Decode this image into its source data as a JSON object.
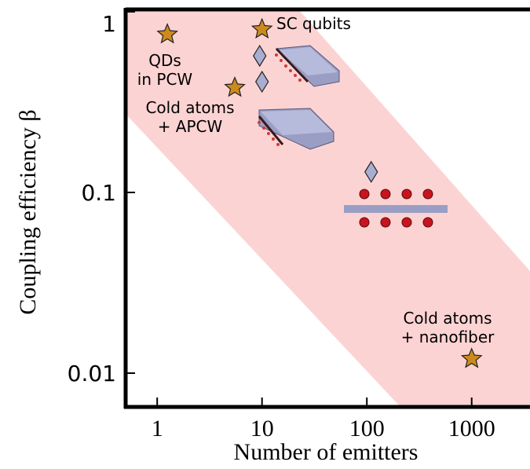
{
  "chart_data": {
    "type": "scatter",
    "xlabel": "Number of emitters",
    "ylabel": "Coupling efficiency β",
    "xscale": "log",
    "yscale": "log",
    "xlim": [
      0.5,
      3600
    ],
    "ylim": [
      0.0065,
      1.03
    ],
    "xticks": [
      1,
      10,
      100,
      1000
    ],
    "yticks": [
      0.01,
      0.1,
      1
    ],
    "series": [
      {
        "marker": "star",
        "color": "#cc8a1e",
        "x": [
          1.25,
          10,
          5.5,
          1000
        ],
        "values": [
          0.75,
          0.8,
          0.38,
          0.012
        ]
      },
      {
        "marker": "diamond",
        "color": "#a9adcf",
        "x": [
          9.5,
          10,
          110
        ],
        "values": [
          0.57,
          0.41,
          0.13
        ]
      }
    ],
    "band_color": "#fcd3d3",
    "annotations": [
      {
        "text": [
          "QDs",
          "in PCW"
        ]
      },
      {
        "text": [
          "SC qubits"
        ]
      },
      {
        "text": [
          "Cold atoms",
          "+ APCW"
        ]
      },
      {
        "text": [
          "Cold atoms",
          "+ nanofiber"
        ]
      }
    ]
  }
}
